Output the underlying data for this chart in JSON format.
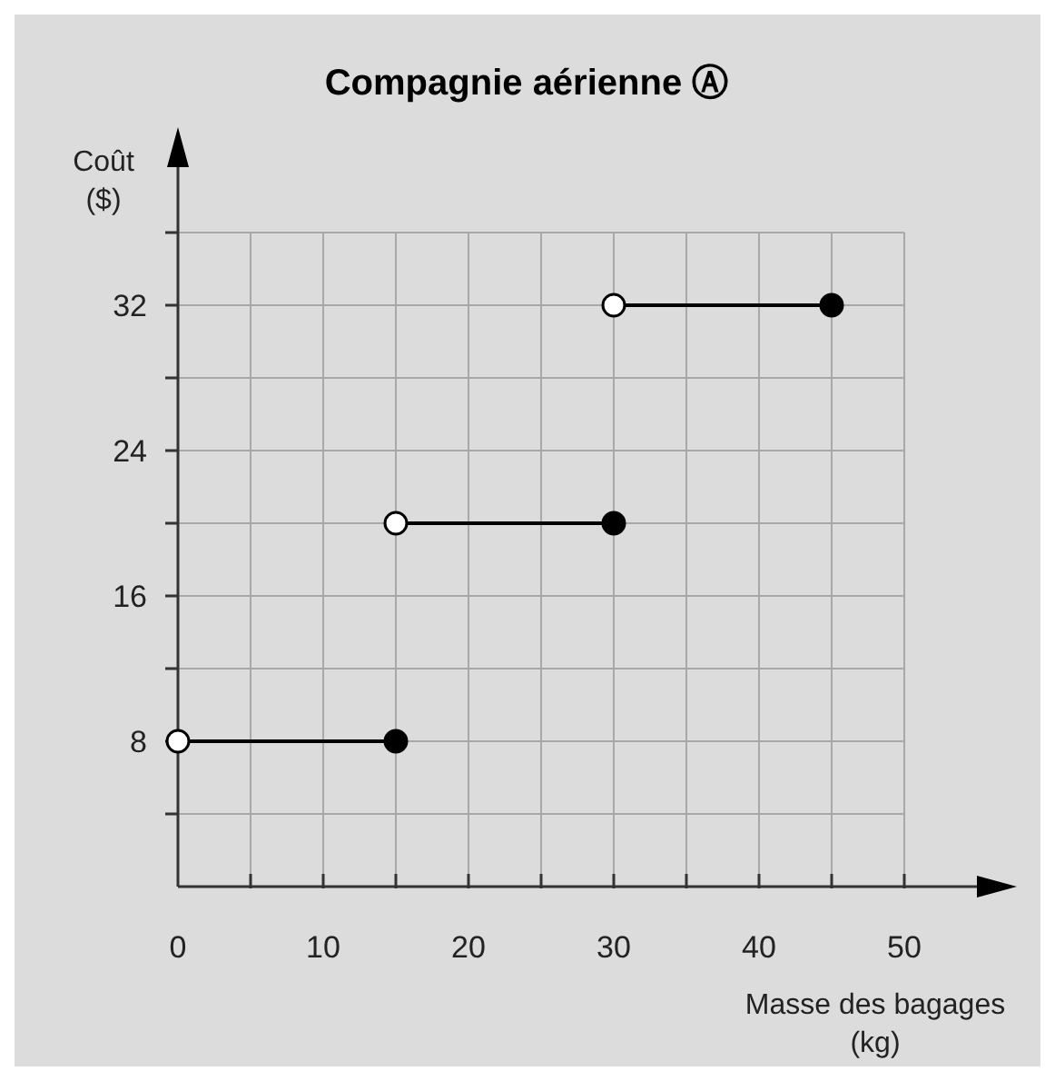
{
  "chart_data": {
    "type": "scatter",
    "title": "Compagnie aérienne Ⓐ",
    "xlabel": "Masse des bagages (kg)",
    "ylabel": "Coût ($)",
    "xlim": [
      0,
      50
    ],
    "ylim": [
      0,
      36
    ],
    "xticks": [
      0,
      {
        "value": 5,
        "label": null
      },
      10,
      {
        "value": 15,
        "label": null
      },
      20,
      {
        "value": 25,
        "label": null
      },
      30,
      {
        "value": 35,
        "label": null
      },
      40,
      {
        "value": 45,
        "label": null
      },
      50
    ],
    "yticks": [
      {
        "value": 4,
        "label": null
      },
      8,
      {
        "value": 12,
        "label": null
      },
      16,
      {
        "value": 20,
        "label": null
      },
      24,
      {
        "value": 28,
        "label": null
      },
      32,
      {
        "value": 36,
        "label": null
      }
    ],
    "grid": true,
    "series": [
      {
        "type": "line",
        "marker": "none",
        "color": "#000000",
        "x": [
          0,
          15
        ],
        "values": [
          8,
          8
        ]
      },
      {
        "type": "line",
        "marker": "none",
        "color": "#000000",
        "x": [
          15,
          30
        ],
        "values": [
          20,
          20
        ]
      },
      {
        "type": "line",
        "marker": "none",
        "color": "#000000",
        "x": [
          30,
          45
        ],
        "values": [
          32,
          32
        ]
      },
      {
        "marker": "circle",
        "color": "#ffffff",
        "x": [
          0,
          15,
          30
        ],
        "values": [
          8,
          20,
          32
        ]
      },
      {
        "marker": "circle",
        "color": "#000000",
        "x": [
          15,
          30,
          45
        ],
        "values": [
          8,
          20,
          32
        ]
      }
    ]
  }
}
